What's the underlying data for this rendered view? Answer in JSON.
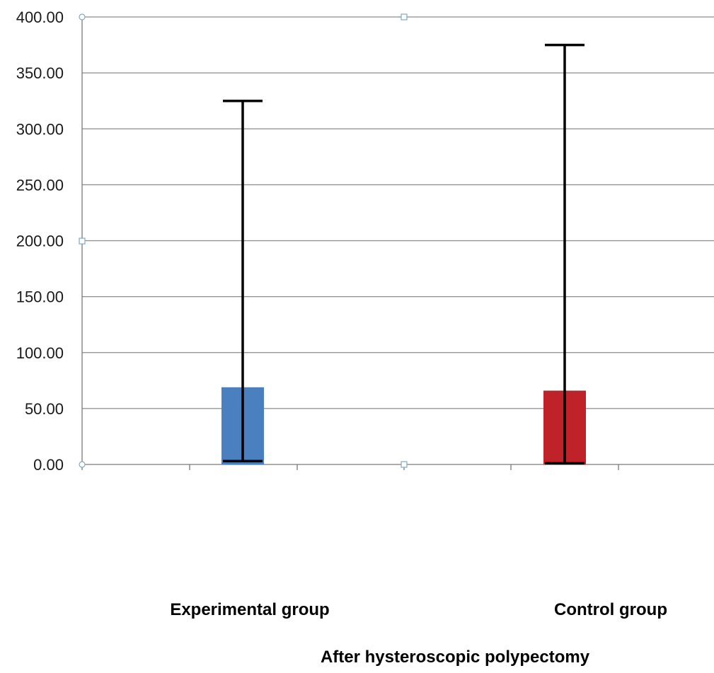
{
  "chart_data": {
    "type": "bar",
    "title": "",
    "xlabel": "After hysteroscopic polypectomy",
    "ylabel": "",
    "ylim": [
      0,
      400
    ],
    "yticks": [
      "0.00",
      "50.00",
      "100.00",
      "150.00",
      "200.00",
      "250.00",
      "300.00",
      "350.00",
      "400.00"
    ],
    "grid": true,
    "legend": "none",
    "categories": [
      "Experimental group",
      "Control group"
    ],
    "values": [
      69,
      66
    ],
    "error_bars": [
      {
        "low": 3,
        "high": 325
      },
      {
        "low": 1,
        "high": 375
      }
    ],
    "colors": [
      "#4a7fc0",
      "#c0222a"
    ],
    "gridline_color": "#8c8c8c",
    "errorbar_color": "#000000"
  }
}
